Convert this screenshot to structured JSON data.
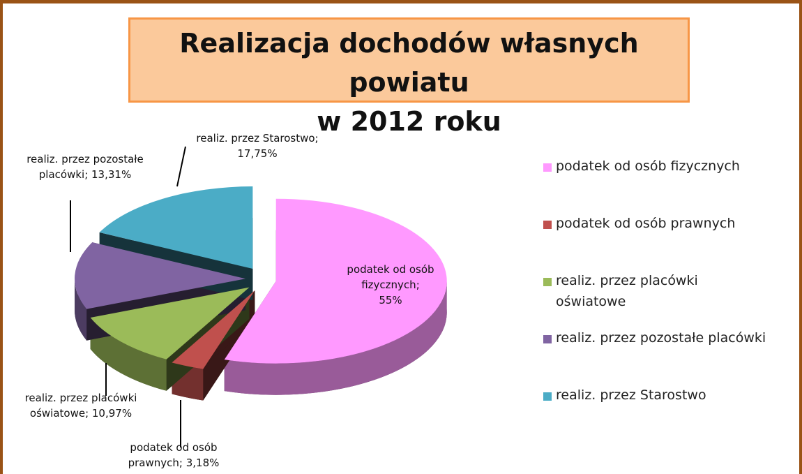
{
  "chart_data": {
    "type": "pie",
    "title": "Realizacja dochodów własnych powiatu\nw 2012 roku",
    "categories": [
      "podatek od osób fizycznych",
      "podatek od osób prawnych",
      "realiz. przez placówki\noświatowe",
      "realiz. przez pozostałe placówki",
      "realiz. przez Starostwo"
    ],
    "values": [
      55,
      3.18,
      10.97,
      13.31,
      17.75
    ],
    "value_labels": [
      "podatek od osób\nfizycznych;\n55%",
      "podatek od osób\nprawnych; 3,18%",
      "realiz. przez placówki\noświatowe; 10,97%",
      "realiz. przez pozostałe\nplacówki; 13,31%",
      "realiz. przez Starostwo;\n17,75%"
    ],
    "colors": [
      "#ff99ff",
      "#c0504d",
      "#9bbb59",
      "#8064a2",
      "#4bacc6"
    ],
    "legend": "right"
  }
}
